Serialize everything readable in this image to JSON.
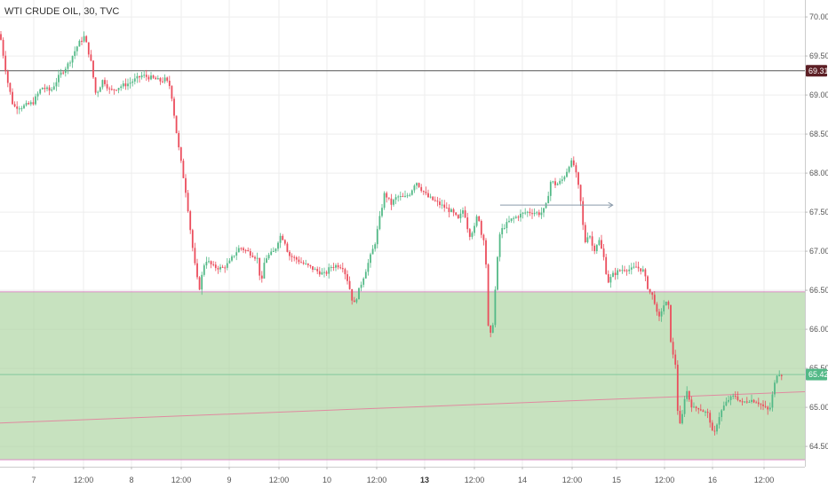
{
  "chart_data": {
    "type": "candlestick",
    "title": "WTI CRUDE OIL, 30, TVC",
    "ylim": [
      64.24,
      70.16
    ],
    "y_ticks": [
      "70.00",
      "69.50",
      "69.00",
      "68.50",
      "68.00",
      "67.50",
      "67.00",
      "66.50",
      "66.00",
      "65.50",
      "65.00",
      "64.50"
    ],
    "x_ticks": [
      "7",
      "12:00",
      "8",
      "12:00",
      "9",
      "12:00",
      "10",
      "12:00",
      "13",
      "12:00",
      "14",
      "12:00",
      "15",
      "12:00",
      "16",
      "12:00"
    ],
    "x_ticks_bold": [
      false,
      false,
      false,
      false,
      false,
      false,
      false,
      false,
      true,
      false,
      false,
      false,
      false,
      false,
      false,
      false
    ],
    "horizontal_line": {
      "value": 69.31,
      "label": "69.31",
      "color": "#5d1f25"
    },
    "last_price": {
      "value": 65.42,
      "label": "65.42",
      "color": "#53b987"
    },
    "zone": {
      "from": 64.33,
      "to": 66.48,
      "color": "#a9d39c"
    },
    "trend_line": {
      "from": [
        0,
        64.8
      ],
      "to": [
        1,
        65.2
      ],
      "color": "#e08aa0"
    },
    "arrow": {
      "x_from": 0.604,
      "x_to": 0.74,
      "value": 67.59
    },
    "up_color": "#53b987",
    "down_color": "#eb4d5c",
    "path": [
      [
        0,
        69.78
      ],
      [
        8,
        69.2
      ],
      [
        15,
        68.85
      ],
      [
        25,
        68.85
      ],
      [
        37,
        68.9
      ],
      [
        47,
        69.1
      ],
      [
        57,
        69.05
      ],
      [
        67,
        69.25
      ],
      [
        77,
        69.4
      ],
      [
        88,
        69.65
      ],
      [
        95,
        69.75
      ],
      [
        102,
        69.45
      ],
      [
        108,
        69.0
      ],
      [
        116,
        69.2
      ],
      [
        124,
        69.05
      ],
      [
        133,
        69.1
      ],
      [
        145,
        69.15
      ],
      [
        160,
        69.25
      ],
      [
        170,
        69.22
      ],
      [
        180,
        69.18
      ],
      [
        186,
        69.2
      ],
      [
        192,
        69.1
      ],
      [
        196,
        68.75
      ],
      [
        200,
        68.4
      ],
      [
        205,
        68.05
      ],
      [
        210,
        67.7
      ],
      [
        215,
        67.2
      ],
      [
        219,
        66.85
      ],
      [
        224,
        66.5
      ],
      [
        231,
        66.9
      ],
      [
        240,
        66.8
      ],
      [
        250,
        66.78
      ],
      [
        258,
        66.85
      ],
      [
        263,
        66.95
      ],
      [
        270,
        67.05
      ],
      [
        278,
        67.0
      ],
      [
        285,
        66.95
      ],
      [
        290,
        66.9
      ],
      [
        294,
        66.55
      ],
      [
        298,
        66.9
      ],
      [
        303,
        66.95
      ],
      [
        309,
        67.0
      ],
      [
        315,
        67.2
      ],
      [
        320,
        67.15
      ],
      [
        325,
        66.95
      ],
      [
        333,
        66.9
      ],
      [
        340,
        66.85
      ],
      [
        348,
        66.8
      ],
      [
        356,
        66.75
      ],
      [
        366,
        66.7
      ],
      [
        372,
        66.8
      ],
      [
        380,
        66.82
      ],
      [
        386,
        66.8
      ],
      [
        392,
        66.6
      ],
      [
        398,
        66.3
      ],
      [
        404,
        66.5
      ],
      [
        410,
        66.7
      ],
      [
        416,
        66.9
      ],
      [
        422,
        67.1
      ],
      [
        427,
        67.4
      ],
      [
        433,
        67.75
      ],
      [
        440,
        67.6
      ],
      [
        447,
        67.7
      ],
      [
        455,
        67.68
      ],
      [
        462,
        67.75
      ],
      [
        468,
        67.9
      ],
      [
        474,
        67.8
      ],
      [
        481,
        67.7
      ],
      [
        488,
        67.65
      ],
      [
        495,
        67.6
      ],
      [
        502,
        67.55
      ],
      [
        509,
        67.5
      ],
      [
        516,
        67.4
      ],
      [
        522,
        67.55
      ],
      [
        528,
        67.2
      ],
      [
        534,
        67.3
      ],
      [
        538,
        67.5
      ],
      [
        542,
        67.2
      ],
      [
        546,
        67.15
      ],
      [
        550,
        65.9
      ],
      [
        554,
        65.95
      ],
      [
        558,
        66.6
      ],
      [
        562,
        67.2
      ],
      [
        566,
        67.3
      ],
      [
        575,
        67.4
      ],
      [
        583,
        67.45
      ],
      [
        592,
        67.5
      ],
      [
        600,
        67.5
      ],
      [
        608,
        67.48
      ],
      [
        614,
        67.55
      ],
      [
        620,
        67.9
      ],
      [
        626,
        67.85
      ],
      [
        632,
        67.9
      ],
      [
        637,
        68.0
      ],
      [
        642,
        68.15
      ],
      [
        646,
        68.1
      ],
      [
        650,
        67.9
      ],
      [
        654,
        67.6
      ],
      [
        658,
        67.1
      ],
      [
        663,
        67.25
      ],
      [
        668,
        67.0
      ],
      [
        674,
        67.15
      ],
      [
        680,
        66.9
      ],
      [
        684,
        66.6
      ],
      [
        690,
        66.7
      ],
      [
        697,
        66.75
      ],
      [
        704,
        66.78
      ],
      [
        710,
        66.76
      ],
      [
        716,
        66.8
      ],
      [
        724,
        66.75
      ],
      [
        730,
        66.5
      ],
      [
        736,
        66.4
      ],
      [
        741,
        66.1
      ],
      [
        746,
        66.3
      ],
      [
        752,
        66.35
      ],
      [
        756,
        65.7
      ],
      [
        760,
        65.6
      ],
      [
        764,
        64.7
      ],
      [
        768,
        64.9
      ],
      [
        772,
        65.25
      ],
      [
        776,
        65.1
      ],
      [
        780,
        64.98
      ],
      [
        786,
        65.0
      ],
      [
        792,
        64.95
      ],
      [
        798,
        64.9
      ],
      [
        803,
        64.6
      ],
      [
        808,
        64.85
      ],
      [
        814,
        65.0
      ],
      [
        820,
        65.1
      ],
      [
        828,
        65.15
      ],
      [
        835,
        65.05
      ],
      [
        843,
        65.1
      ],
      [
        852,
        65.08
      ],
      [
        860,
        65.0
      ],
      [
        866,
        64.95
      ],
      [
        871,
        65.25
      ],
      [
        875,
        65.45
      ],
      [
        881,
        65.42
      ]
    ]
  }
}
